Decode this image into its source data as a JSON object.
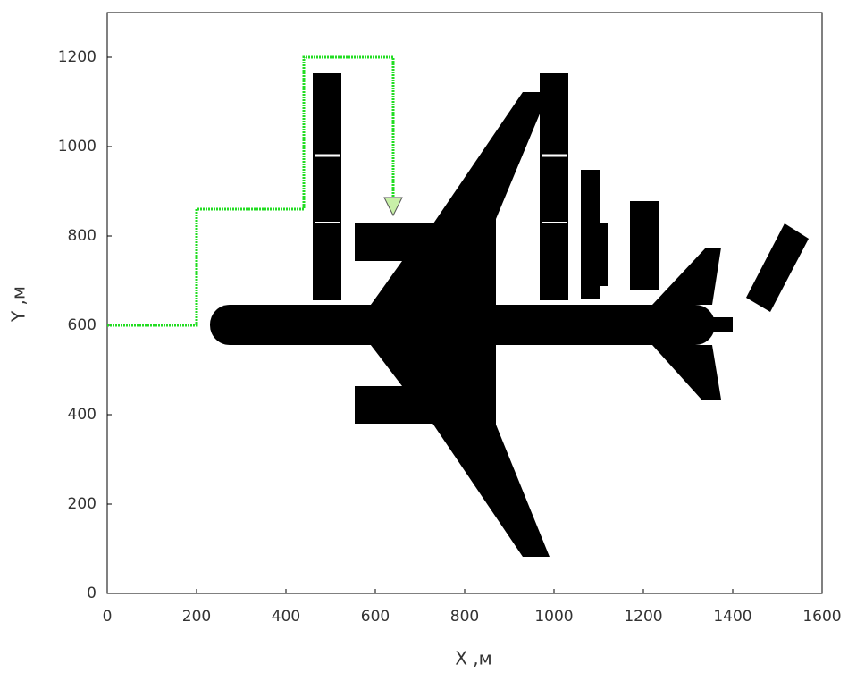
{
  "chart_data": {
    "type": "line",
    "xlabel": "X ,м",
    "ylabel": "Y ,м",
    "series": [
      {
        "color": "#22dd22",
        "x": [
          0,
          200,
          200,
          440,
          440,
          640,
          640
        ],
        "values": [
          600,
          600,
          860,
          860,
          1200,
          1200,
          870
        ]
      }
    ],
    "xlim": [
      0,
      1600
    ],
    "ylim": [
      0,
      1300
    ],
    "xticks": [
      0,
      200,
      400,
      600,
      800,
      1000,
      1200,
      1400,
      1600
    ],
    "yticks": [
      0,
      200,
      400,
      600,
      800,
      1000,
      1200
    ]
  }
}
